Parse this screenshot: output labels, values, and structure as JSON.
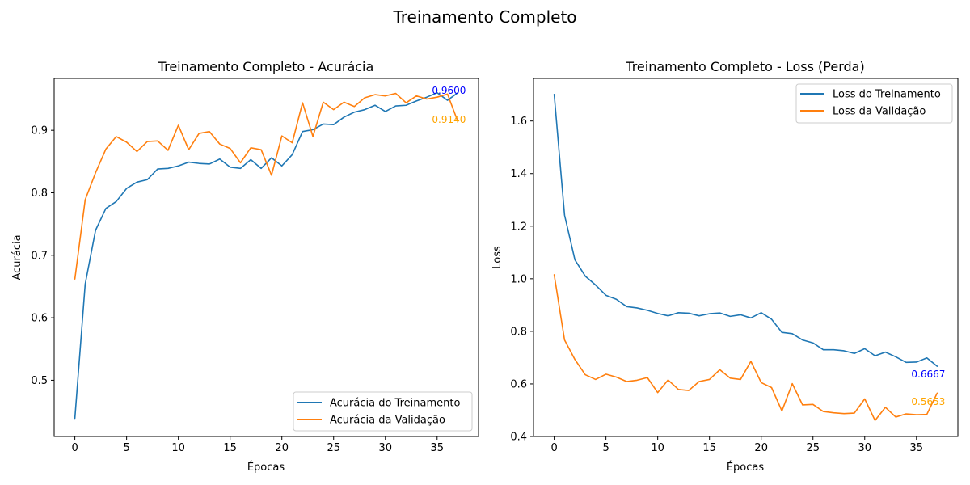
{
  "figure": {
    "title": "Treinamento Completo"
  },
  "chart_data": [
    {
      "type": "line",
      "title": "Treinamento Completo - Acurácia",
      "xlabel": "Épocas",
      "ylabel": "Acurácia",
      "xlim": [
        -2,
        39
      ],
      "ylim": [
        0.41,
        0.983
      ],
      "xticks": [
        0,
        5,
        10,
        15,
        20,
        25,
        30,
        35
      ],
      "yticks": [
        0.5,
        0.6,
        0.7,
        0.8,
        0.9
      ],
      "ytick_decimals": 1,
      "legend_position": "lower-right",
      "grid": false,
      "x": [
        0,
        1,
        2,
        3,
        4,
        5,
        6,
        7,
        8,
        9,
        10,
        11,
        12,
        13,
        14,
        15,
        16,
        17,
        18,
        19,
        20,
        21,
        22,
        23,
        24,
        25,
        26,
        27,
        28,
        29,
        30,
        31,
        32,
        33,
        34,
        35,
        36,
        37
      ],
      "series": [
        {
          "name": "Acurácia do Treinamento",
          "color": "#1f77b4",
          "values": [
            0.439,
            0.654,
            0.74,
            0.775,
            0.786,
            0.807,
            0.817,
            0.821,
            0.838,
            0.839,
            0.843,
            0.849,
            0.847,
            0.846,
            0.854,
            0.841,
            0.839,
            0.853,
            0.839,
            0.856,
            0.843,
            0.861,
            0.898,
            0.901,
            0.91,
            0.909,
            0.921,
            0.929,
            0.933,
            0.94,
            0.93,
            0.939,
            0.94,
            0.947,
            0.953,
            0.96,
            0.948,
            0.96
          ]
        },
        {
          "name": "Acurácia da Validação",
          "color": "#ff7f0e",
          "values": [
            0.662,
            0.789,
            0.832,
            0.87,
            0.89,
            0.881,
            0.866,
            0.882,
            0.883,
            0.868,
            0.908,
            0.869,
            0.895,
            0.898,
            0.878,
            0.871,
            0.848,
            0.872,
            0.869,
            0.828,
            0.891,
            0.88,
            0.944,
            0.89,
            0.945,
            0.933,
            0.945,
            0.938,
            0.952,
            0.957,
            0.955,
            0.959,
            0.944,
            0.955,
            0.95,
            0.953,
            0.958,
            0.914
          ]
        }
      ],
      "annotations": [
        {
          "text": "0.9600",
          "x": 34.5,
          "y": 0.9635,
          "color": "#0000ff"
        },
        {
          "text": "0.9140",
          "x": 34.5,
          "y": 0.917,
          "color": "#ffa500"
        }
      ]
    },
    {
      "type": "line",
      "title": "Treinamento Completo - Loss (Perda)",
      "xlabel": "Épocas",
      "ylabel": "Loss",
      "xlim": [
        -2,
        39
      ],
      "ylim": [
        0.4,
        1.762
      ],
      "xticks": [
        0,
        5,
        10,
        15,
        20,
        25,
        30,
        35
      ],
      "yticks": [
        0.4,
        0.6,
        0.8,
        1.0,
        1.2,
        1.4,
        1.6
      ],
      "ytick_decimals": 1,
      "legend_position": "upper-right",
      "grid": false,
      "x": [
        0,
        1,
        2,
        3,
        4,
        5,
        6,
        7,
        8,
        9,
        10,
        11,
        12,
        13,
        14,
        15,
        16,
        17,
        18,
        19,
        20,
        21,
        22,
        23,
        24,
        25,
        26,
        27,
        28,
        29,
        30,
        31,
        32,
        33,
        34,
        35,
        36,
        37
      ],
      "series": [
        {
          "name": "Loss do Treinamento",
          "color": "#1f77b4",
          "values": [
            1.701,
            1.242,
            1.072,
            1.01,
            0.976,
            0.937,
            0.922,
            0.894,
            0.889,
            0.88,
            0.868,
            0.859,
            0.871,
            0.869,
            0.859,
            0.867,
            0.87,
            0.857,
            0.863,
            0.851,
            0.871,
            0.846,
            0.796,
            0.791,
            0.767,
            0.756,
            0.73,
            0.73,
            0.726,
            0.716,
            0.734,
            0.707,
            0.721,
            0.703,
            0.682,
            0.683,
            0.699,
            0.667
          ]
        },
        {
          "name": "Loss da Validação",
          "color": "#ff7f0e",
          "values": [
            1.015,
            0.767,
            0.693,
            0.635,
            0.617,
            0.637,
            0.626,
            0.609,
            0.614,
            0.624,
            0.567,
            0.615,
            0.579,
            0.575,
            0.609,
            0.617,
            0.654,
            0.622,
            0.617,
            0.686,
            0.605,
            0.586,
            0.497,
            0.601,
            0.52,
            0.522,
            0.495,
            0.49,
            0.487,
            0.489,
            0.543,
            0.461,
            0.511,
            0.474,
            0.486,
            0.483,
            0.484,
            0.565
          ]
        }
      ],
      "annotations": [
        {
          "text": "0.6667",
          "x": 34.5,
          "y": 0.637,
          "color": "#0000ff"
        },
        {
          "text": "0.5653",
          "x": 34.5,
          "y": 0.532,
          "color": "#ffa500"
        }
      ]
    }
  ]
}
